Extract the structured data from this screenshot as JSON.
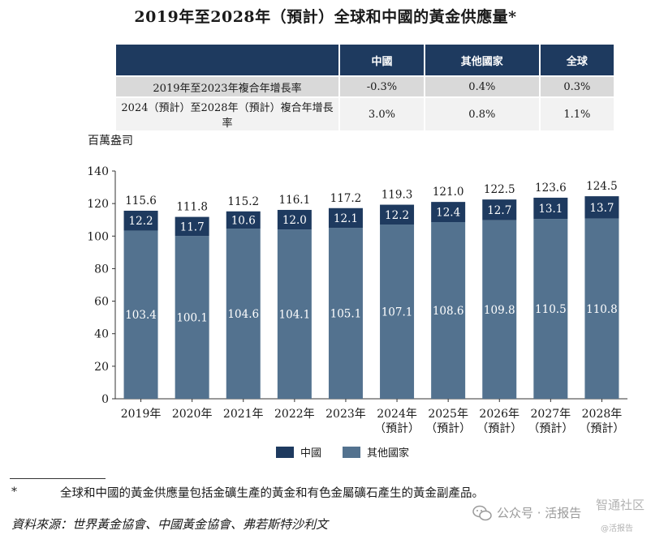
{
  "title": "2019年至2028年（預計）全球和中國的黃金供應量*",
  "growth_table": {
    "headers": [
      "",
      "中國",
      "其他國家",
      "全球"
    ],
    "rows": [
      {
        "label": "2019年至2023年複合年增長率",
        "values": [
          "-0.3%",
          "0.4%",
          "0.3%"
        ]
      },
      {
        "label": "2024（預計）至2028年（預計）複合年增長率",
        "values": [
          "3.0%",
          "0.8%",
          "1.1%"
        ]
      }
    ]
  },
  "unit_label": "百萬盎司",
  "chart_data": {
    "type": "bar",
    "stacked": true,
    "categories": [
      "2019年",
      "2020年",
      "2021年",
      "2022年",
      "2023年",
      "2024年",
      "2025年",
      "2026年",
      "2027年",
      "2028年"
    ],
    "category_sublabels": [
      "",
      "",
      "",
      "",
      "",
      "（預計）",
      "（預計）",
      "（預計）",
      "（預計）",
      "（預計）"
    ],
    "series": [
      {
        "name": "其他國家",
        "color": "#53728f",
        "values": [
          103.4,
          100.1,
          104.6,
          104.1,
          105.1,
          107.1,
          108.6,
          109.8,
          110.5,
          110.8
        ]
      },
      {
        "name": "中國",
        "color": "#1e3a5f",
        "values": [
          12.2,
          11.7,
          10.6,
          12.0,
          12.1,
          12.2,
          12.4,
          12.7,
          13.1,
          13.7
        ]
      }
    ],
    "totals": [
      115.6,
      111.8,
      115.2,
      116.1,
      117.2,
      119.3,
      121.0,
      122.5,
      123.6,
      124.5
    ],
    "ylim": [
      0,
      140
    ],
    "yticks": [
      0,
      20,
      40,
      60,
      80,
      100,
      120,
      140
    ],
    "grid": false
  },
  "legend": [
    {
      "label": "中國",
      "color": "#1e3a5f"
    },
    {
      "label": "其他國家",
      "color": "#53728f"
    }
  ],
  "footnote": {
    "mark": "*",
    "text": "全球和中國的黃金供應量包括金礦生產的黃金和有色金屬礦石產生的黃金副產品。"
  },
  "source": "資料來源：世界黃金協會、中國黃金協會、弗若斯特沙利文",
  "watermark": {
    "text": "公众号 · 活报告",
    "corner": "智通社区",
    "sub": "@活报告"
  }
}
